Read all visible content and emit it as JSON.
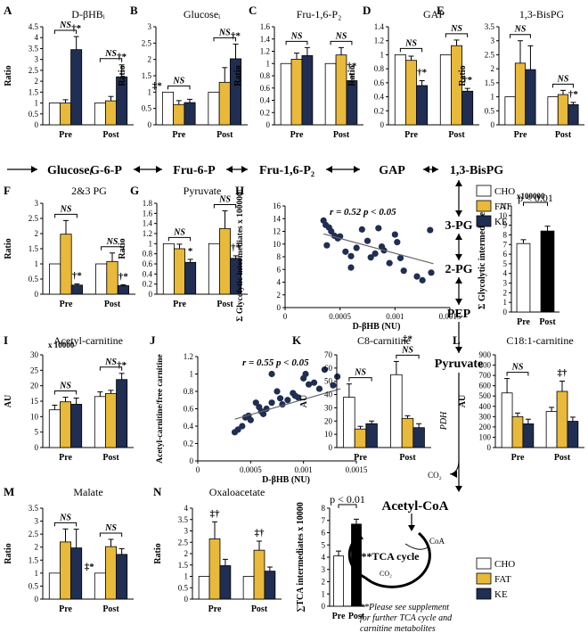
{
  "colors": {
    "cho": "#ffffff",
    "fat": "#e8b93a",
    "ke": "#1f2e52",
    "black": "#000000"
  },
  "legend": [
    "CHO",
    "FAT",
    "KE"
  ],
  "pathway": {
    "row": [
      "Glucoseᵢ",
      "G-6-P",
      "Fru-6-P",
      "Fru-1,6-P₂",
      "GAP",
      "1,3-BisPG"
    ],
    "column": [
      "3-PG",
      "2-PG",
      "PEP",
      "Pyruvate"
    ],
    "enzyme": "PDH",
    "acetyl": "Acetyl-CoA",
    "co2": "CO₂",
    "tca": "**TCA cycle",
    "coa": "CoA",
    "note": [
      "**Please see supplement",
      "for further TCA cycle and",
      "carnitine metabolites"
    ]
  },
  "chart_data": [
    {
      "id": "A",
      "type": "bar",
      "title": "D-βHBᵢ",
      "ylabel": "Ratio",
      "ylim": [
        0,
        4.5
      ],
      "yticks": [
        "0",
        "0.5",
        "1",
        "1.5",
        "2",
        "2.5",
        "3",
        "3.5",
        "4",
        "4.5"
      ],
      "categories": [
        "Pre",
        "Post"
      ],
      "series": [
        {
          "name": "CHO",
          "values": [
            1,
            1
          ]
        },
        {
          "name": "FAT",
          "values": [
            1.0,
            1.1
          ]
        },
        {
          "name": "KE",
          "values": [
            3.45,
            2.2
          ]
        }
      ],
      "errors": [
        [
          0,
          0
        ],
        [
          0.15,
          0.2
        ],
        [
          0.6,
          0.55
        ]
      ],
      "ns": [
        "NS",
        "NS"
      ],
      "marks": [
        "†*",
        "†*"
      ]
    },
    {
      "id": "B",
      "type": "bar",
      "title": "Glucoseᵢ",
      "ylabel": "Ratio",
      "ylim": [
        0,
        3
      ],
      "yticks": [
        "0",
        "0.5",
        "1",
        "1.5",
        "2",
        "2.5",
        "3"
      ],
      "categories": [
        "Pre",
        "Post"
      ],
      "series": [
        {
          "name": "CHO",
          "values": [
            1,
            1
          ]
        },
        {
          "name": "FAT",
          "values": [
            0.62,
            1.3
          ]
        },
        {
          "name": "KE",
          "values": [
            0.68,
            2.02
          ]
        }
      ],
      "errors": [
        [
          0,
          0
        ],
        [
          0.12,
          0.45
        ],
        [
          0.1,
          0.45
        ]
      ],
      "ns": [
        "NS",
        "NS"
      ],
      "marks": [
        "‡*",
        "†*"
      ]
    },
    {
      "id": "C",
      "type": "bar",
      "title": "Fru-1,6-P₂",
      "ylabel": "Ratio",
      "ylim": [
        0,
        1.6
      ],
      "yticks": [
        "0",
        "0.2",
        "0.4",
        "0.6",
        "0.8",
        "1",
        "1.2",
        "1.4",
        "1.6"
      ],
      "categories": [
        "Pre",
        "Post"
      ],
      "series": [
        {
          "name": "CHO",
          "values": [
            1,
            1
          ]
        },
        {
          "name": "FAT",
          "values": [
            1.07,
            1.14
          ]
        },
        {
          "name": "KE",
          "values": [
            1.13,
            0.72
          ]
        }
      ],
      "errors": [
        [
          0,
          0
        ],
        [
          0.1,
          0.12
        ],
        [
          0.13,
          0.1
        ]
      ],
      "ns": [
        "NS",
        "NS"
      ],
      "marks": [
        "",
        "†*"
      ]
    },
    {
      "id": "D",
      "type": "bar",
      "title": "GAP",
      "ylabel": "Ratio",
      "ylim": [
        0,
        1.4
      ],
      "yticks": [
        "0",
        "0.2",
        "0.4",
        "0.6",
        "0.8",
        "1",
        "1.2",
        "1.4"
      ],
      "categories": [
        "Pre",
        "Post"
      ],
      "series": [
        {
          "name": "CHO",
          "values": [
            1,
            1
          ]
        },
        {
          "name": "FAT",
          "values": [
            0.92,
            1.13
          ]
        },
        {
          "name": "KE",
          "values": [
            0.56,
            0.48
          ]
        }
      ],
      "errors": [
        [
          0,
          0
        ],
        [
          0.06,
          0.08
        ],
        [
          0.07,
          0.04
        ]
      ],
      "ns": [
        "NS",
        "NS"
      ],
      "marks": [
        "†*",
        "†*"
      ]
    },
    {
      "id": "E",
      "type": "bar",
      "title": "1,3-BisPG",
      "ylabel": "Ratio",
      "ylim": [
        0,
        3.5
      ],
      "yticks": [
        "0",
        "0.5",
        "1",
        "1.5",
        "2",
        "2.5",
        "3",
        "3.5"
      ],
      "categories": [
        "Pre",
        "Post"
      ],
      "series": [
        {
          "name": "CHO",
          "values": [
            1,
            1
          ]
        },
        {
          "name": "FAT",
          "values": [
            2.2,
            1.08
          ]
        },
        {
          "name": "KE",
          "values": [
            1.97,
            0.72
          ]
        }
      ],
      "errors": [
        [
          0,
          0
        ],
        [
          0.8,
          0.15
        ],
        [
          0.85,
          0.08
        ]
      ],
      "ns": [
        "NS",
        "NS"
      ],
      "marks": [
        "",
        "†*"
      ]
    },
    {
      "id": "F",
      "type": "bar",
      "title": "2&3 PG",
      "ylabel": "Ratio",
      "ylim": [
        0,
        3
      ],
      "yticks": [
        "0",
        "0.5",
        "1",
        "1.5",
        "2",
        "2.5",
        "3"
      ],
      "categories": [
        "Pre",
        "Post"
      ],
      "series": [
        {
          "name": "CHO",
          "values": [
            1,
            1
          ]
        },
        {
          "name": "FAT",
          "values": [
            1.98,
            1.08
          ]
        },
        {
          "name": "KE",
          "values": [
            0.3,
            0.28
          ]
        }
      ],
      "errors": [
        [
          0,
          0
        ],
        [
          0.45,
          0.28
        ],
        [
          0.04,
          0.03
        ]
      ],
      "ns": [
        "NS",
        "NS"
      ],
      "marks": [
        "†*",
        "†*"
      ]
    },
    {
      "id": "G",
      "type": "bar",
      "title": "Pyruvate",
      "ylabel": "Ratio",
      "ylim": [
        0,
        1.8
      ],
      "yticks": [
        "0",
        "0.2",
        "0.4",
        "0.6",
        "0.8",
        "1",
        "1.2",
        "1.4",
        "1.6",
        "1.8"
      ],
      "categories": [
        "Pre",
        "Post"
      ],
      "series": [
        {
          "name": "CHO",
          "values": [
            1,
            1
          ]
        },
        {
          "name": "FAT",
          "values": [
            0.9,
            1.3
          ]
        },
        {
          "name": "KE",
          "values": [
            0.63,
            0.71
          ]
        }
      ],
      "errors": [
        [
          0,
          0
        ],
        [
          0.09,
          0.35
        ],
        [
          0.06,
          0.05
        ]
      ],
      "ns": [
        "NS",
        "NS"
      ],
      "marks": [
        "*",
        "†*"
      ]
    },
    {
      "id": "H",
      "type": "scatter",
      "ylabel": "Σ Glycolytic intermediates x 100000",
      "xlabel": "D-βHB (NU)",
      "xlim": [
        0,
        0.0015
      ],
      "ylim": [
        0,
        16
      ],
      "xticks": [
        "0",
        "0.0005",
        "0.001",
        "0.0015"
      ],
      "yticks": [
        "0",
        "2",
        "4",
        "6",
        "8",
        "10",
        "12",
        "14",
        "16"
      ],
      "stats": "r = 0.52    p < 0.05",
      "fit": [
        [
          0.00035,
          11.6
        ],
        [
          0.00135,
          6.9
        ]
      ],
      "points": [
        [
          0.00035,
          13.7
        ],
        [
          0.00037,
          13.0
        ],
        [
          0.0004,
          12.6
        ],
        [
          0.00042,
          12.0
        ],
        [
          0.00045,
          11.3
        ],
        [
          0.00038,
          9.8
        ],
        [
          0.0005,
          11.2
        ],
        [
          0.00055,
          8.8
        ],
        [
          0.00048,
          10.9
        ],
        [
          0.0006,
          8.1
        ],
        [
          0.0006,
          6.3
        ],
        [
          0.00065,
          9.4
        ],
        [
          0.0007,
          12.3
        ],
        [
          0.00075,
          10.5
        ],
        [
          0.00078,
          7.9
        ],
        [
          0.00082,
          8.5
        ],
        [
          0.00085,
          12.5
        ],
        [
          0.00088,
          9.6
        ],
        [
          0.0009,
          9.0
        ],
        [
          0.00095,
          7.0
        ],
        [
          0.001,
          11.5
        ],
        [
          0.00102,
          10.3
        ],
        [
          0.00105,
          7.8
        ],
        [
          0.00108,
          5.8
        ],
        [
          0.0012,
          4.9
        ],
        [
          0.00125,
          4.3
        ],
        [
          0.00132,
          12.2
        ],
        [
          0.00133,
          5.5
        ]
      ]
    },
    {
      "id": "H2",
      "type": "bar",
      "title": "p < 0.01",
      "ylabel": "Σ Glycolytic intermediates",
      "unit": "x100000",
      "ylim": [
        0,
        11
      ],
      "yticks": [
        "0",
        "1",
        "2",
        "3",
        "4",
        "5",
        "6",
        "7",
        "8",
        "9",
        "10",
        "11"
      ],
      "categories": [
        "Pre",
        "Post"
      ],
      "values": [
        7.1,
        8.4
      ],
      "errors": [
        0.4,
        0.5
      ]
    },
    {
      "id": "I",
      "type": "bar",
      "title": "Acetyl-carnitine",
      "ylabel": "AU",
      "unit": "x 10000",
      "ylim": [
        0,
        30
      ],
      "yticks": [
        "0",
        "5",
        "10",
        "15",
        "20",
        "25",
        "30"
      ],
      "categories": [
        "Pre",
        "Post"
      ],
      "series": [
        {
          "name": "CHO",
          "values": [
            12.2,
            16.5
          ]
        },
        {
          "name": "FAT",
          "values": [
            14.8,
            17.5
          ]
        },
        {
          "name": "KE",
          "values": [
            14.0,
            22.0
          ]
        }
      ],
      "errors": [
        [
          1.5,
          1.5
        ],
        [
          1.5,
          1.0
        ],
        [
          2.0,
          2.0
        ]
      ],
      "ns": [
        "NS",
        "NS"
      ],
      "marks": [
        "",
        "†*"
      ]
    },
    {
      "id": "J",
      "type": "scatter",
      "ylabel": "Acetyl-carnitine/free carnitine",
      "xlabel": "D-βHB (NU)",
      "xlim": [
        0,
        0.0015
      ],
      "ylim": [
        0,
        1.2
      ],
      "xticks": [
        "0",
        "0.0005",
        "0.001",
        "0.0015"
      ],
      "yticks": [
        "0",
        "0.2",
        "0.4",
        "0.6",
        "0.8",
        "1",
        "1.2"
      ],
      "stats": "r = 0.55    p < 0.05",
      "fit": [
        [
          0.00035,
          0.48
        ],
        [
          0.00135,
          0.83
        ]
      ],
      "points": [
        [
          0.00035,
          0.33
        ],
        [
          0.00038,
          0.36
        ],
        [
          0.00042,
          0.4
        ],
        [
          0.00045,
          0.5
        ],
        [
          0.00048,
          0.52
        ],
        [
          0.0005,
          0.47
        ],
        [
          0.00055,
          0.67
        ],
        [
          0.00058,
          0.62
        ],
        [
          0.0006,
          0.57
        ],
        [
          0.00062,
          0.54
        ],
        [
          0.00065,
          0.6
        ],
        [
          0.0007,
          0.67
        ],
        [
          0.0007,
          1.0
        ],
        [
          0.00075,
          0.8
        ],
        [
          0.00078,
          0.72
        ],
        [
          0.0008,
          0.65
        ],
        [
          0.00085,
          0.7
        ],
        [
          0.0009,
          0.78
        ],
        [
          0.00092,
          0.75
        ],
        [
          0.00095,
          0.73
        ],
        [
          0.001,
          0.95
        ],
        [
          0.00102,
          1.0
        ],
        [
          0.00105,
          0.88
        ],
        [
          0.0011,
          0.9
        ],
        [
          0.00115,
          0.83
        ],
        [
          0.0012,
          1.05
        ],
        [
          0.00128,
          0.87
        ],
        [
          0.00132,
          0.97
        ]
      ]
    },
    {
      "id": "K",
      "type": "bar",
      "title": "C8-carnitine",
      "ylabel": "AU",
      "ylim": [
        0,
        70
      ],
      "yticks": [
        "0",
        "10",
        "20",
        "30",
        "40",
        "50",
        "60",
        "70"
      ],
      "categories": [
        "Pre",
        "Post"
      ],
      "series": [
        {
          "name": "CHO",
          "values": [
            38,
            55
          ]
        },
        {
          "name": "FAT",
          "values": [
            14,
            22
          ]
        },
        {
          "name": "KE",
          "values": [
            18,
            15
          ]
        }
      ],
      "errors": [
        [
          10,
          10
        ],
        [
          2,
          2
        ],
        [
          2,
          3
        ]
      ],
      "ns": [
        "NS",
        "NS"
      ],
      "marks": [
        "",
        "‡*"
      ]
    },
    {
      "id": "L",
      "type": "bar",
      "title": "C18:1-carnitine",
      "ylabel": "AU",
      "ylim": [
        0,
        900
      ],
      "yticks": [
        "0",
        "100",
        "200",
        "300",
        "400",
        "500",
        "600",
        "700",
        "800",
        "900"
      ],
      "categories": [
        "Pre",
        "Post"
      ],
      "series": [
        {
          "name": "CHO",
          "values": [
            530,
            350
          ]
        },
        {
          "name": "FAT",
          "values": [
            300,
            545
          ]
        },
        {
          "name": "KE",
          "values": [
            230,
            255
          ]
        }
      ],
      "errors": [
        [
          140,
          40
        ],
        [
          35,
          100
        ],
        [
          45,
          40
        ]
      ],
      "ns": [
        "NS",
        ""
      ],
      "marks": [
        "",
        "‡†"
      ]
    },
    {
      "id": "M",
      "type": "bar",
      "title": "Malate",
      "ylabel": "Ratio",
      "ylim": [
        0,
        3.5
      ],
      "yticks": [
        "0",
        "0.5",
        "1",
        "1.5",
        "2",
        "2.5",
        "3",
        "3.5"
      ],
      "categories": [
        "Pre",
        "Post"
      ],
      "series": [
        {
          "name": "CHO",
          "values": [
            1,
            1
          ]
        },
        {
          "name": "FAT",
          "values": [
            2.2,
            2.02
          ]
        },
        {
          "name": "KE",
          "values": [
            1.97,
            1.72
          ]
        }
      ],
      "errors": [
        [
          0,
          0
        ],
        [
          0.5,
          0.28
        ],
        [
          0.72,
          0.22
        ]
      ],
      "ns": [
        "NS",
        "NS"
      ],
      "marks": [
        "",
        "‡*"
      ]
    },
    {
      "id": "N",
      "type": "bar",
      "title": "Oxaloacetate",
      "ylabel": "Ratio",
      "ylim": [
        0,
        4
      ],
      "yticks": [
        "0",
        "0.5",
        "1",
        "1.5",
        "2",
        "2.5",
        "3",
        "3.5",
        "4"
      ],
      "categories": [
        "Pre",
        "Post"
      ],
      "series": [
        {
          "name": "CHO",
          "values": [
            1,
            1
          ]
        },
        {
          "name": "FAT",
          "values": [
            2.65,
            2.15
          ]
        },
        {
          "name": "KE",
          "values": [
            1.47,
            1.23
          ]
        }
      ],
      "errors": [
        [
          0,
          0
        ],
        [
          0.75,
          0.4
        ],
        [
          0.28,
          0.18
        ]
      ],
      "ns": [
        "",
        ""
      ],
      "marks": [
        "‡†",
        "‡†"
      ]
    },
    {
      "id": "N2",
      "type": "bar",
      "title": "p < 0.01",
      "ylabel": "∑TCA intermediates x 10000",
      "ylim": [
        0,
        8
      ],
      "yticks": [
        "0",
        "1",
        "2",
        "3",
        "4",
        "5",
        "6",
        "7",
        "8"
      ],
      "categories": [
        "Pre",
        "Post"
      ],
      "values": [
        4.1,
        6.7
      ],
      "errors": [
        0.4,
        0.4
      ]
    }
  ]
}
